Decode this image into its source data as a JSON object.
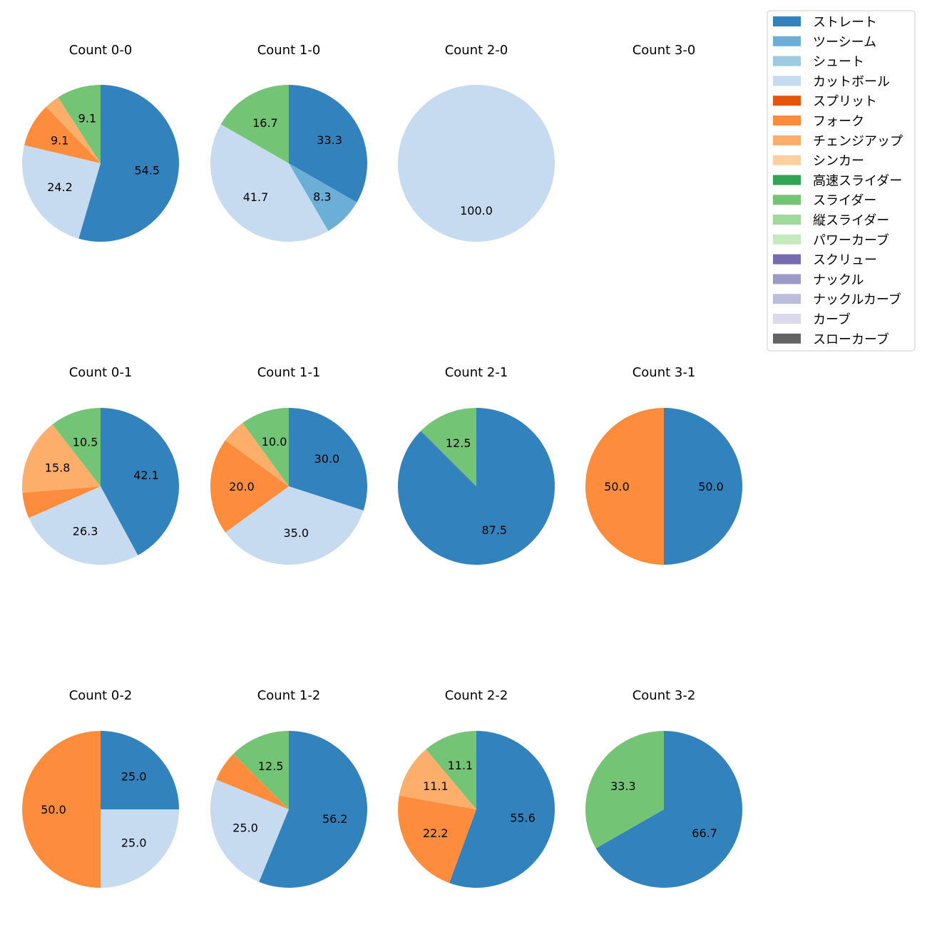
{
  "chart_data": {
    "type": "pie",
    "legend_position": "top-right",
    "legend": [
      {
        "name": "ストレート",
        "color": "#3182bd"
      },
      {
        "name": "ツーシーム",
        "color": "#6baed6"
      },
      {
        "name": "シュート",
        "color": "#9ecae1"
      },
      {
        "name": "カットボール",
        "color": "#c6dbef"
      },
      {
        "name": "スプリット",
        "color": "#e6550d"
      },
      {
        "name": "フォーク",
        "color": "#fd8d3c"
      },
      {
        "name": "チェンジアップ",
        "color": "#fdae6b"
      },
      {
        "name": "シンカー",
        "color": "#fdd0a2"
      },
      {
        "name": "高速スライダー",
        "color": "#31a354"
      },
      {
        "name": "スライダー",
        "color": "#74c476"
      },
      {
        "name": "縦スライダー",
        "color": "#a1d99b"
      },
      {
        "name": "パワーカーブ",
        "color": "#c7e9c0"
      },
      {
        "name": "スクリュー",
        "color": "#756bb1"
      },
      {
        "name": "ナックル",
        "color": "#9e9ac8"
      },
      {
        "name": "ナックルカーブ",
        "color": "#bcbddc"
      },
      {
        "name": "カーブ",
        "color": "#dadaeb"
      },
      {
        "name": "スローカーブ",
        "color": "#636363"
      }
    ],
    "charts": [
      {
        "title": "Count 0-0",
        "slices": [
          {
            "pitch": "ストレート",
            "value": 54.5,
            "label": "54.5"
          },
          {
            "pitch": "カットボール",
            "value": 24.2,
            "label": "24.2"
          },
          {
            "pitch": "フォーク",
            "value": 9.1,
            "label": "9.1"
          },
          {
            "pitch": "チェンジアップ",
            "value": 3.1,
            "label": ""
          },
          {
            "pitch": "スライダー",
            "value": 9.1,
            "label": "9.1"
          }
        ]
      },
      {
        "title": "Count 1-0",
        "slices": [
          {
            "pitch": "ストレート",
            "value": 33.3,
            "label": "33.3"
          },
          {
            "pitch": "ツーシーム",
            "value": 8.3,
            "label": "8.3"
          },
          {
            "pitch": "カットボール",
            "value": 41.7,
            "label": "41.7"
          },
          {
            "pitch": "スライダー",
            "value": 16.7,
            "label": "16.7"
          }
        ]
      },
      {
        "title": "Count 2-0",
        "slices": [
          {
            "pitch": "カットボール",
            "value": 100.0,
            "label": "100.0"
          }
        ]
      },
      {
        "title": "Count 3-0",
        "slices": []
      },
      {
        "title": "Count 0-1",
        "slices": [
          {
            "pitch": "ストレート",
            "value": 42.1,
            "label": "42.1"
          },
          {
            "pitch": "カットボール",
            "value": 26.3,
            "label": "26.3"
          },
          {
            "pitch": "フォーク",
            "value": 5.3,
            "label": ""
          },
          {
            "pitch": "チェンジアップ",
            "value": 15.8,
            "label": "15.8"
          },
          {
            "pitch": "スライダー",
            "value": 10.5,
            "label": "10.5"
          }
        ]
      },
      {
        "title": "Count 1-1",
        "slices": [
          {
            "pitch": "ストレート",
            "value": 30.0,
            "label": "30.0"
          },
          {
            "pitch": "カットボール",
            "value": 35.0,
            "label": "35.0"
          },
          {
            "pitch": "フォーク",
            "value": 20.0,
            "label": "20.0"
          },
          {
            "pitch": "チェンジアップ",
            "value": 5.0,
            "label": ""
          },
          {
            "pitch": "スライダー",
            "value": 10.0,
            "label": "10.0"
          }
        ]
      },
      {
        "title": "Count 2-1",
        "slices": [
          {
            "pitch": "ストレート",
            "value": 87.5,
            "label": "87.5"
          },
          {
            "pitch": "スライダー",
            "value": 12.5,
            "label": "12.5"
          }
        ]
      },
      {
        "title": "Count 3-1",
        "slices": [
          {
            "pitch": "ストレート",
            "value": 50.0,
            "label": "50.0"
          },
          {
            "pitch": "フォーク",
            "value": 50.0,
            "label": "50.0"
          }
        ]
      },
      {
        "title": "Count 0-2",
        "slices": [
          {
            "pitch": "ストレート",
            "value": 25.0,
            "label": "25.0"
          },
          {
            "pitch": "カットボール",
            "value": 25.0,
            "label": "25.0"
          },
          {
            "pitch": "フォーク",
            "value": 50.0,
            "label": "50.0"
          }
        ]
      },
      {
        "title": "Count 1-2",
        "slices": [
          {
            "pitch": "ストレート",
            "value": 56.2,
            "label": "56.2"
          },
          {
            "pitch": "カットボール",
            "value": 25.0,
            "label": "25.0"
          },
          {
            "pitch": "フォーク",
            "value": 6.3,
            "label": ""
          },
          {
            "pitch": "スライダー",
            "value": 12.5,
            "label": "12.5"
          }
        ]
      },
      {
        "title": "Count 2-2",
        "slices": [
          {
            "pitch": "ストレート",
            "value": 55.6,
            "label": "55.6"
          },
          {
            "pitch": "フォーク",
            "value": 22.2,
            "label": "22.2"
          },
          {
            "pitch": "チェンジアップ",
            "value": 11.1,
            "label": "11.1"
          },
          {
            "pitch": "スライダー",
            "value": 11.1,
            "label": "11.1"
          }
        ]
      },
      {
        "title": "Count 3-2",
        "slices": [
          {
            "pitch": "ストレート",
            "value": 66.7,
            "label": "66.7"
          },
          {
            "pitch": "スライダー",
            "value": 33.3,
            "label": "33.3"
          }
        ]
      }
    ]
  }
}
